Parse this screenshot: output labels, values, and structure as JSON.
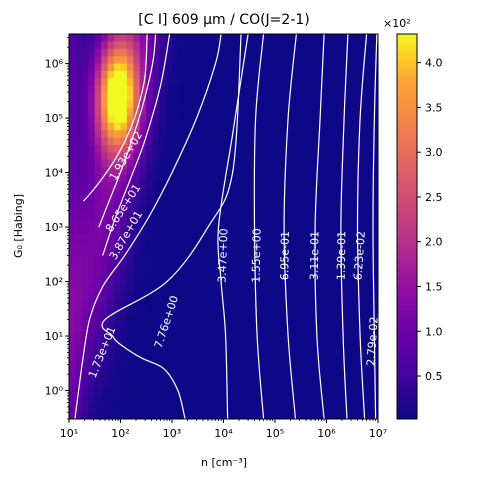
{
  "chart_data": {
    "type": "heatmap",
    "title": "[C I] 609 μm / CO(J=2-1)",
    "xlabel": "n [cm⁻³]",
    "ylabel": "G₀ [Habing]",
    "x_scale": "log",
    "y_scale": "log",
    "xlim": [
      10,
      10000000
    ],
    "ylim": [
      0.3,
      3500000
    ],
    "x_ticks": [
      {
        "value": 10,
        "label": "10¹"
      },
      {
        "value": 100,
        "label": "10²"
      },
      {
        "value": 1000,
        "label": "10³"
      },
      {
        "value": 10000,
        "label": "10⁴"
      },
      {
        "value": 100000,
        "label": "10⁵"
      },
      {
        "value": 1000000,
        "label": "10⁶"
      },
      {
        "value": 10000000,
        "label": "10⁷"
      }
    ],
    "y_ticks": [
      {
        "value": 1,
        "label": "10⁰"
      },
      {
        "value": 10,
        "label": "10¹"
      },
      {
        "value": 100,
        "label": "10²"
      },
      {
        "value": 1000,
        "label": "10³"
      },
      {
        "value": 10000,
        "label": "10⁴"
      },
      {
        "value": 100000,
        "label": "10⁵"
      },
      {
        "value": 1000000,
        "label": "10⁶"
      }
    ],
    "colormap": "plasma",
    "colorbar": {
      "range": [
        0.02,
        4.32
      ],
      "multiplier": "×10²",
      "ticks": [
        {
          "value": 0.5,
          "label": "0.5"
        },
        {
          "value": 1.0,
          "label": "1.0"
        },
        {
          "value": 1.5,
          "label": "1.5"
        },
        {
          "value": 2.0,
          "label": "2.0"
        },
        {
          "value": 2.5,
          "label": "2.5"
        },
        {
          "value": 3.0,
          "label": "3.0"
        },
        {
          "value": 3.5,
          "label": "3.5"
        },
        {
          "value": 4.0,
          "label": "4.0"
        }
      ]
    },
    "peak": {
      "x": 100,
      "y": 300000,
      "value": 4.32
    },
    "contour_color": "#ffffff",
    "contours": [
      {
        "label": "1.93e+02",
        "points": [
          [
            19,
            3000
          ],
          [
            28,
            4500
          ],
          [
            45,
            8000
          ],
          [
            80,
            18000
          ],
          [
            140,
            50000
          ],
          [
            220,
            160000
          ],
          [
            300,
            600000
          ],
          [
            330,
            3500000
          ]
        ]
      },
      {
        "label": "8.65e+01",
        "points": [
          [
            38,
            1000
          ],
          [
            60,
            3000
          ],
          [
            95,
            9000
          ],
          [
            150,
            30000
          ],
          [
            260,
            150000
          ],
          [
            420,
            1000000
          ],
          [
            480,
            3500000
          ]
        ]
      },
      {
        "label": "3.87e+01",
        "points": [
          [
            45,
            300
          ],
          [
            80,
            1500
          ],
          [
            150,
            7000
          ],
          [
            300,
            40000
          ],
          [
            600,
            400000
          ],
          [
            900,
            3500000
          ]
        ]
      },
      {
        "label": "1.73e+01",
        "points": [
          [
            13,
            0.3
          ],
          [
            18,
            3
          ],
          [
            25,
            20
          ],
          [
            45,
            80
          ],
          [
            120,
            300
          ],
          [
            350,
            1500
          ],
          [
            1000,
            10000
          ],
          [
            3000,
            100000
          ],
          [
            7000,
            1000000
          ],
          [
            9000,
            3500000
          ]
        ]
      },
      {
        "label": "7.76e+00",
        "points": [
          [
            1800,
            0.3
          ],
          [
            1300,
            1
          ],
          [
            700,
            2.5
          ],
          [
            250,
            4
          ],
          [
            100,
            7
          ],
          [
            70,
            10
          ],
          [
            50,
            20
          ],
          [
            800,
            100
          ],
          [
            5000,
            1000
          ],
          [
            15000,
            10000
          ],
          [
            22000,
            3500000
          ]
        ]
      },
      {
        "label": "3.47e+00",
        "points": [
          [
            12000,
            0.3
          ],
          [
            11000,
            10
          ],
          [
            9000,
            100
          ],
          [
            8000,
            1000
          ],
          [
            15000,
            50000
          ],
          [
            30000,
            3500000
          ]
        ]
      },
      {
        "label": "1.55e+00",
        "points": [
          [
            60000,
            0.3
          ],
          [
            45000,
            10
          ],
          [
            40000,
            1000
          ],
          [
            42000,
            100000
          ],
          [
            60000,
            3500000
          ]
        ]
      },
      {
        "label": "6.95e-01",
        "points": [
          [
            250000,
            0.3
          ],
          [
            180000,
            10
          ],
          [
            150000,
            1000
          ],
          [
            180000,
            100000
          ],
          [
            260000,
            3500000
          ]
        ]
      },
      {
        "label": "3.11e-01",
        "points": [
          [
            900000,
            0.3
          ],
          [
            650000,
            10
          ],
          [
            600000,
            1000
          ],
          [
            750000,
            100000
          ],
          [
            900000,
            3500000
          ]
        ]
      },
      {
        "label": "1.39e-01",
        "points": [
          [
            2500000,
            0.3
          ],
          [
            2100000,
            10
          ],
          [
            1900000,
            1000
          ],
          [
            2200000,
            100000
          ],
          [
            2600000,
            3500000
          ]
        ]
      },
      {
        "label": "6.23e-02",
        "points": [
          [
            5500000,
            0.3
          ],
          [
            4500000,
            10
          ],
          [
            4000000,
            1000
          ],
          [
            4500000,
            100000
          ],
          [
            6000000,
            3500000
          ]
        ]
      },
      {
        "label": "2.79e-02",
        "points": [
          [
            9000000,
            0.3
          ],
          [
            8500000,
            10
          ],
          [
            8000000,
            1000
          ],
          [
            8500000,
            100000
          ],
          [
            9500000,
            3500000
          ]
        ]
      }
    ],
    "contour_labels": [
      {
        "label": "1.93e+02",
        "x": 130,
        "y": 20000,
        "angle": -60
      },
      {
        "label": "8.65e+01",
        "x": 115,
        "y": 2200,
        "angle": -57
      },
      {
        "label": "3.87e+01",
        "x": 130,
        "y": 700,
        "angle": -60
      },
      {
        "label": "1.73e+01",
        "x": 45,
        "y": 5,
        "angle": -68
      },
      {
        "label": "7.76e+00",
        "x": 800,
        "y": 18,
        "angle": -72
      },
      {
        "label": "3.47e+00",
        "x": 10000,
        "y": 300,
        "angle": -88
      },
      {
        "label": "1.55e+00",
        "x": 45000,
        "y": 300,
        "angle": -89
      },
      {
        "label": "6.95e-01",
        "x": 160000,
        "y": 300,
        "angle": -89
      },
      {
        "label": "3.11e-01",
        "x": 600000,
        "y": 300,
        "angle": -89
      },
      {
        "label": "1.39e-01",
        "x": 2000000,
        "y": 300,
        "angle": -89
      },
      {
        "label": "6.23e-02",
        "x": 4500000,
        "y": 300,
        "angle": -86
      },
      {
        "label": "2.79e-02",
        "x": 8000000,
        "y": 8,
        "angle": -86
      }
    ]
  }
}
